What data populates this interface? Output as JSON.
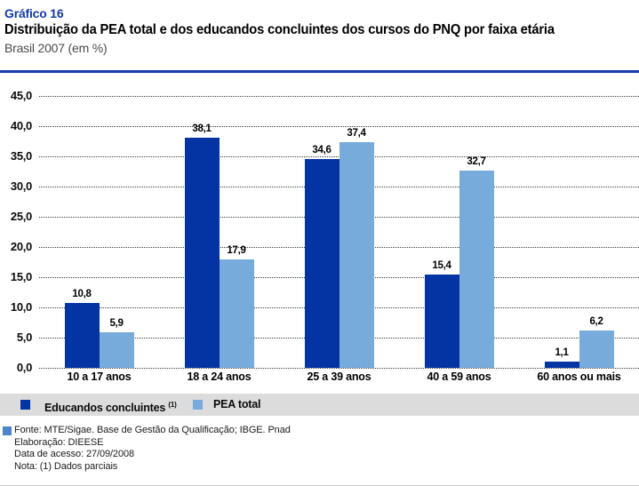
{
  "page": {
    "background": "#ffffff",
    "accent_blue": "#143AA8",
    "bottom_rule_color": "#c9c9c9"
  },
  "header": {
    "label": "Gráfico 16",
    "title": "Distribuição da PEA total e dos educandos concluintes dos cursos do PNQ por faixa etária",
    "subtitle": "Brasil 2007 (em %)"
  },
  "chart_data": {
    "type": "bar",
    "categories": [
      "10 a 17 anos",
      "18 a 24 anos",
      "25 a 39 anos",
      "40 a 59 anos",
      "60 anos ou mais"
    ],
    "series": [
      {
        "name": "Educandos concluintes",
        "note": "(1)",
        "color": "#0434A4",
        "values": [
          10.8,
          38.1,
          34.6,
          15.4,
          1.1
        ]
      },
      {
        "name": "PEA total",
        "note": "",
        "color": "#76ABDC",
        "values": [
          5.9,
          17.9,
          37.4,
          32.7,
          6.2
        ]
      }
    ],
    "title": "Distribuição da PEA total e dos educandos concluintes dos cursos do PNQ por faixa etária",
    "subtitle": "Brasil 2007 (em %)",
    "xlabel": "",
    "ylabel": "",
    "ylim": [
      0,
      45
    ],
    "ytick_step": 5,
    "ytick_labels": [
      "0,0",
      "5,0",
      "10,0",
      "15,0",
      "20,0",
      "25,0",
      "30,0",
      "35,0",
      "40,0",
      "45,0"
    ],
    "decimal_separator": ",",
    "grid": "horizontal-dotted",
    "value_labels_shown": true,
    "legend_position": "bottom"
  },
  "legend": {
    "items": [
      {
        "label": "Educandos concluintes",
        "sup": "(1)",
        "color": "#0434A4"
      },
      {
        "label": "PEA total",
        "sup": "",
        "color": "#76ABDC"
      }
    ]
  },
  "footer": {
    "marker_color": "#4A86C8",
    "lines": [
      "Fonte: MTE/Sigae. Base de Gestão da Qualificação; IBGE. Pnad",
      "Elaboração: DIEESE",
      "Data de acesso: 27/09/2008",
      "Nota: (1) Dados parciais"
    ]
  }
}
